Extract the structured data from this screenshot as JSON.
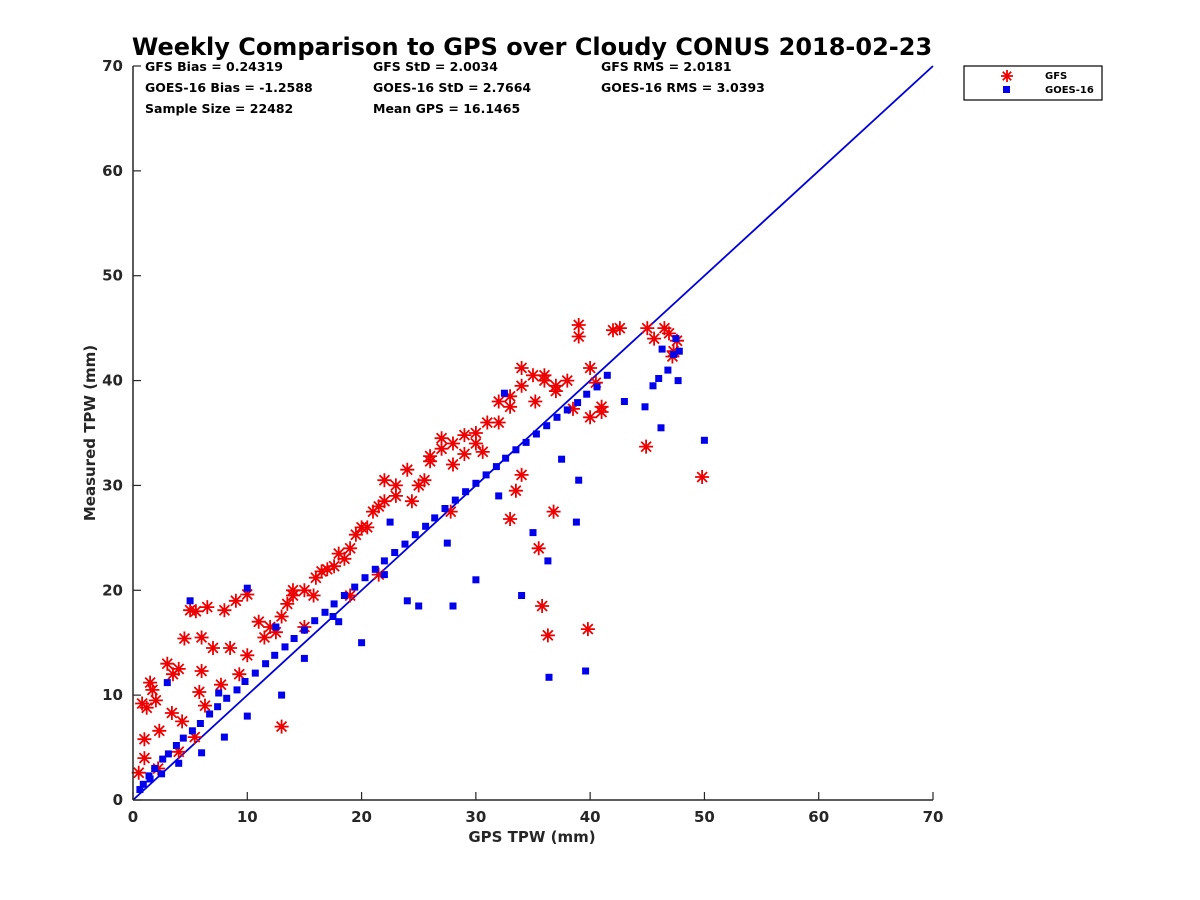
{
  "chart_data": {
    "type": "scatter",
    "title": "Weekly Comparison to GPS over Cloudy CONUS 2018-02-23",
    "xlabel": "GPS TPW (mm)",
    "ylabel": "Measured TPW (mm)",
    "xlim": [
      0,
      70
    ],
    "ylim": [
      0,
      70
    ],
    "xticks": [
      "0",
      "10",
      "20",
      "30",
      "40",
      "50",
      "60",
      "70"
    ],
    "yticks": [
      "0",
      "10",
      "20",
      "30",
      "40",
      "50",
      "60",
      "70"
    ],
    "grid": false,
    "legend_position": "top-right outside",
    "stats": [
      [
        "GFS Bias = 0.24319",
        "GFS StD = 2.0034",
        "GFS RMS = 2.0181"
      ],
      [
        "GOES-16 Bias = -1.2588",
        "GOES-16 StD = 2.7664",
        "GOES-16 RMS = 3.0393"
      ],
      [
        "Sample Size = 22482",
        "Mean GPS = 16.1465",
        ""
      ]
    ],
    "reference_line": {
      "x": [
        0,
        70
      ],
      "y": [
        0,
        70
      ],
      "color": "#0000dd"
    },
    "series": [
      {
        "name": "GFS",
        "marker": "asterisk",
        "color": "#ee0000",
        "x": [
          0.5,
          1.0,
          1.2,
          1.5,
          2.0,
          2.3,
          3.0,
          3.5,
          4.0,
          4.5,
          5.0,
          5.5,
          6.0,
          6.5,
          7.0,
          8.0,
          9.0,
          10.0,
          11.0,
          12.0,
          13.0,
          14.0,
          15.0,
          16.0,
          17.0,
          18.0,
          19.0,
          20.0,
          21.0,
          22.0,
          23.0,
          24.0,
          25.0,
          26.0,
          27.0,
          28.0,
          29.0,
          30.0,
          31.0,
          32.0,
          33.0,
          34.0,
          35.0,
          36.0,
          37.0,
          38.0,
          39.0,
          40.0,
          41.0,
          0.8,
          1.0,
          1.7,
          2.2,
          3.4,
          4.0,
          4.3,
          5.4,
          5.8,
          6.0,
          6.3,
          7.7,
          8.5,
          9.3,
          10.0,
          11.5,
          12.5,
          13.5,
          14.0,
          15.0,
          15.8,
          16.5,
          17.6,
          18.5,
          19.5,
          20.5,
          21.5,
          22.0,
          23.0,
          24.4,
          25.5,
          26.0,
          27.0,
          28.0,
          29.0,
          30.0,
          30.6,
          32.0,
          33.0,
          34.0,
          35.2,
          36.0,
          37.0,
          38.5,
          39.0,
          40.0,
          40.5,
          41.0,
          42.0,
          42.6,
          45.0,
          45.6,
          46.5,
          47.2,
          47.6,
          46.9,
          47.3,
          49.8,
          44.9,
          39.8,
          36.3,
          35.8,
          33.0,
          33.5,
          34.0,
          35.5,
          36.8,
          21.5,
          13.0,
          19.0,
          27.8
        ],
        "y": [
          2.6,
          5.8,
          8.8,
          11.2,
          9.5,
          6.6,
          13.0,
          12.0,
          12.5,
          15.4,
          18.1,
          18.0,
          15.5,
          18.4,
          14.5,
          18.1,
          19.0,
          19.6,
          17.0,
          16.5,
          17.5,
          19.5,
          20.0,
          21.2,
          22.0,
          23.5,
          24.0,
          26.0,
          27.5,
          28.5,
          30.0,
          31.5,
          30.0,
          32.8,
          34.5,
          32.0,
          33.0,
          34.0,
          36.0,
          38.0,
          37.5,
          39.5,
          40.5,
          40.0,
          39.0,
          40.0,
          45.3,
          41.2,
          37.0,
          9.2,
          4.0,
          10.5,
          3.0,
          8.3,
          4.6,
          7.5,
          6.0,
          10.3,
          12.3,
          9.0,
          11.0,
          14.5,
          12.0,
          13.8,
          15.5,
          16.0,
          18.7,
          20.0,
          16.5,
          19.5,
          21.8,
          22.3,
          23.0,
          25.3,
          26.0,
          28.0,
          30.5,
          29.0,
          28.5,
          30.5,
          32.3,
          33.5,
          34.0,
          34.8,
          35.0,
          33.2,
          36.0,
          38.5,
          41.2,
          38.0,
          40.5,
          39.5,
          37.3,
          44.2,
          36.5,
          39.8,
          37.5,
          44.8,
          45.0,
          45.0,
          44.0,
          45.0,
          42.3,
          43.8,
          44.5,
          42.8,
          30.8,
          33.7,
          16.3,
          15.7,
          18.5,
          26.8,
          29.5,
          31.0,
          24.0,
          27.5,
          21.5,
          7.0,
          19.5,
          27.5
        ]
      },
      {
        "name": "GOES-16",
        "marker": "square",
        "color": "#0000ee",
        "x": [
          0.9,
          1.4,
          1.9,
          2.6,
          3.1,
          3.8,
          4.4,
          5.2,
          5.9,
          6.7,
          7.4,
          8.2,
          9.1,
          9.8,
          10.7,
          11.6,
          12.4,
          13.3,
          14.1,
          15.0,
          15.9,
          16.8,
          17.6,
          18.5,
          19.4,
          20.3,
          21.2,
          22.0,
          22.9,
          23.8,
          24.7,
          25.6,
          26.4,
          27.3,
          28.2,
          29.1,
          30.0,
          30.9,
          31.8,
          32.6,
          33.5,
          34.4,
          35.3,
          36.2,
          37.1,
          38.0,
          38.9,
          39.7,
          40.6,
          3.0,
          5.0,
          7.5,
          10.0,
          12.5,
          15.0,
          17.5,
          20.0,
          22.5,
          25.0,
          27.5,
          30.0,
          32.5,
          35.0,
          37.5,
          39.0,
          41.5,
          43.0,
          44.8,
          45.5,
          46.0,
          46.3,
          46.8,
          47.3,
          47.5,
          47.7,
          47.8,
          50.0,
          46.2,
          36.4,
          39.6,
          36.3,
          38.8,
          34.0,
          32.0,
          28.0,
          24.0,
          22.0,
          18.0,
          13.0,
          10.0,
          8.0,
          6.0,
          4.0,
          2.5,
          1.5,
          0.6
        ],
        "y": [
          1.5,
          2.3,
          3.0,
          3.9,
          4.4,
          5.2,
          5.9,
          6.6,
          7.3,
          8.2,
          8.9,
          9.7,
          10.5,
          11.3,
          12.1,
          13.0,
          13.8,
          14.6,
          15.4,
          16.2,
          17.1,
          17.9,
          18.7,
          19.5,
          20.3,
          21.2,
          22.0,
          22.8,
          23.6,
          24.4,
          25.3,
          26.1,
          26.9,
          27.8,
          28.6,
          29.4,
          30.2,
          31.0,
          31.8,
          32.6,
          33.4,
          34.1,
          34.9,
          35.7,
          36.5,
          37.2,
          37.9,
          38.7,
          39.4,
          11.2,
          19.0,
          10.2,
          20.2,
          16.5,
          13.5,
          17.5,
          15.0,
          26.5,
          18.5,
          24.5,
          21.0,
          38.8,
          25.5,
          32.5,
          30.5,
          40.5,
          38.0,
          37.5,
          39.5,
          40.2,
          43.0,
          41.0,
          42.5,
          44.0,
          40.0,
          42.8,
          34.3,
          35.5,
          11.7,
          12.3,
          22.8,
          26.5,
          19.5,
          29.0,
          18.5,
          19.0,
          21.5,
          17.0,
          10.0,
          8.0,
          6.0,
          4.5,
          3.5,
          2.5,
          2.0,
          1.0
        ]
      }
    ]
  }
}
